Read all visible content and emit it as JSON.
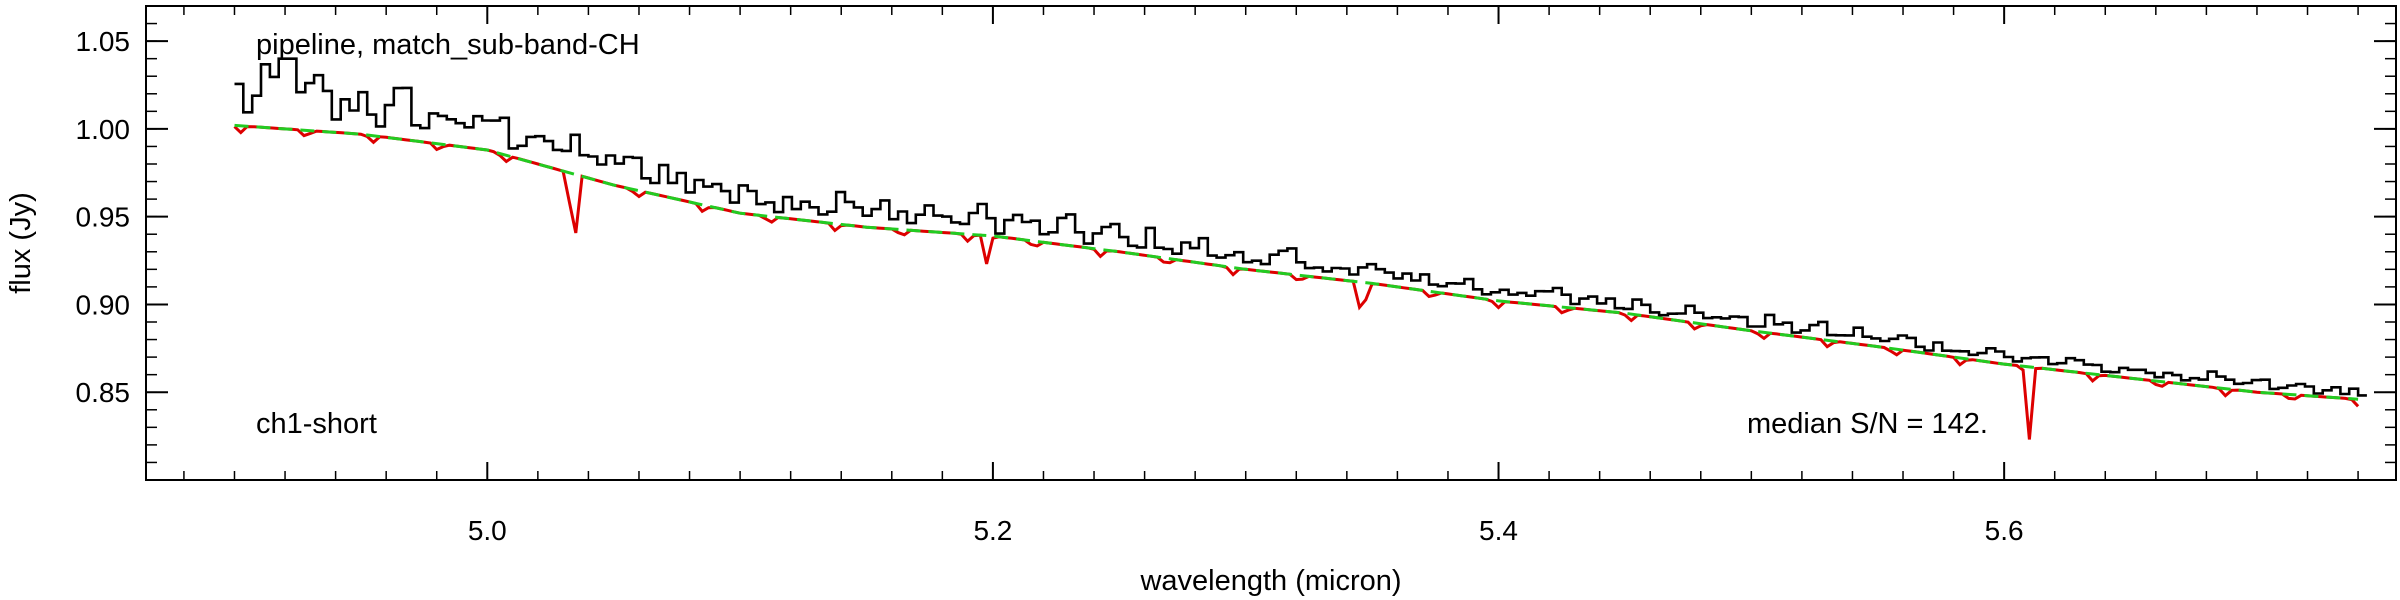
{
  "chart_data": {
    "type": "line",
    "title": "",
    "xlabel": "wavelength (micron)",
    "ylabel": "flux (Jy)",
    "xlim": [
      4.865,
      5.755
    ],
    "ylim": [
      0.8,
      1.07
    ],
    "x_ticks": [
      5.0,
      5.2,
      5.4,
      5.6
    ],
    "x_tick_labels": [
      "5.0",
      "5.2",
      "5.4",
      "5.6"
    ],
    "y_ticks": [
      0.85,
      0.9,
      0.95,
      1.0,
      1.05
    ],
    "y_tick_labels": [
      "0.85",
      "0.90",
      "0.95",
      "1.00",
      "1.05"
    ],
    "grid": false,
    "annotations": {
      "top_left": "pipeline, match_sub-band-CH",
      "bottom_left": "ch1-short",
      "bottom_right": "median S/N = 142."
    },
    "colors": {
      "spectrum": "#000000",
      "model": "#dd0000",
      "continuum": "#22cc22"
    },
    "series": [
      {
        "style": "black-step",
        "x": [
          4.9,
          4.92,
          4.95,
          5.0,
          5.05,
          5.1,
          5.15,
          5.2,
          5.25,
          5.3,
          5.35,
          5.4,
          5.45,
          5.5,
          5.55,
          5.6,
          5.65,
          5.7,
          5.74
        ],
        "values": [
          1.005,
          1.01,
          1.005,
          0.995,
          0.98,
          0.97,
          0.958,
          0.948,
          0.94,
          0.93,
          0.918,
          0.908,
          0.897,
          0.886,
          0.876,
          0.866,
          0.858,
          0.851,
          0.848
        ]
      },
      {
        "style": "red-model",
        "x": [
          4.9,
          4.95,
          5.0,
          5.05,
          5.1,
          5.15,
          5.2,
          5.25,
          5.3,
          5.35,
          5.4,
          5.45,
          5.5,
          5.55,
          5.6,
          5.65,
          5.7,
          5.74
        ],
        "values": [
          1.002,
          0.997,
          0.988,
          0.968,
          0.952,
          0.944,
          0.939,
          0.93,
          0.92,
          0.912,
          0.902,
          0.895,
          0.885,
          0.876,
          0.866,
          0.858,
          0.85,
          0.846
        ],
        "absorption_lines": [
          {
            "x": 5.034,
            "min": 0.91
          },
          {
            "x": 5.198,
            "min": 0.92
          },
          {
            "x": 5.346,
            "min": 0.885
          },
          {
            "x": 5.61,
            "min": 0.826
          }
        ]
      },
      {
        "style": "green-dashed-continuum",
        "x": [
          4.9,
          4.95,
          5.0,
          5.05,
          5.1,
          5.15,
          5.2,
          5.25,
          5.3,
          5.35,
          5.4,
          5.45,
          5.5,
          5.55,
          5.6,
          5.65,
          5.7,
          5.74
        ],
        "values": [
          1.002,
          0.997,
          0.988,
          0.968,
          0.952,
          0.944,
          0.939,
          0.93,
          0.92,
          0.912,
          0.902,
          0.895,
          0.885,
          0.876,
          0.866,
          0.858,
          0.85,
          0.846
        ]
      }
    ]
  }
}
